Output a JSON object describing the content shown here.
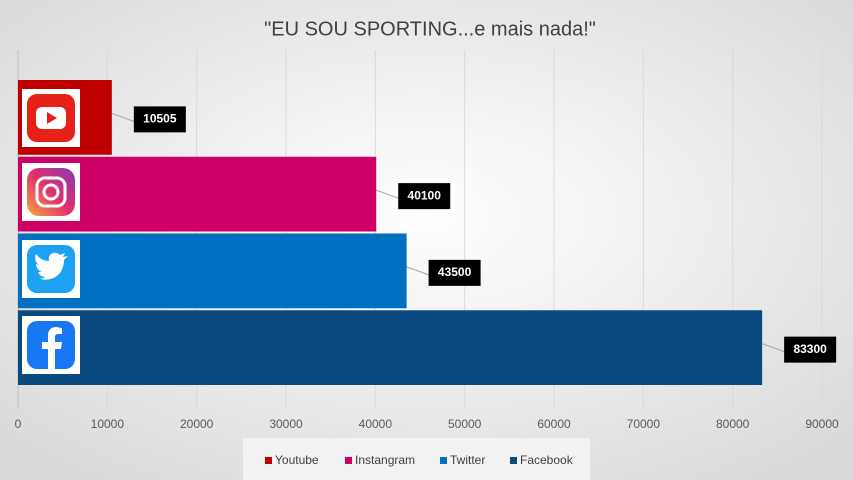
{
  "chart_data": {
    "type": "bar",
    "orientation": "horizontal",
    "title": "\"EU SOU SPORTING...e mais nada!\"",
    "categories": [
      "Youtube",
      "Instangram",
      "Twitter",
      "Facebook"
    ],
    "values": [
      10505,
      40100,
      43500,
      83300
    ],
    "colors": [
      "#c00000",
      "#cc0066",
      "#0070c0",
      "#0b4a80"
    ],
    "xlim": [
      0,
      90000
    ],
    "xticks": [
      0,
      10000,
      20000,
      30000,
      40000,
      50000,
      60000,
      70000,
      80000,
      90000
    ],
    "grid": true,
    "legend": "bottom"
  }
}
